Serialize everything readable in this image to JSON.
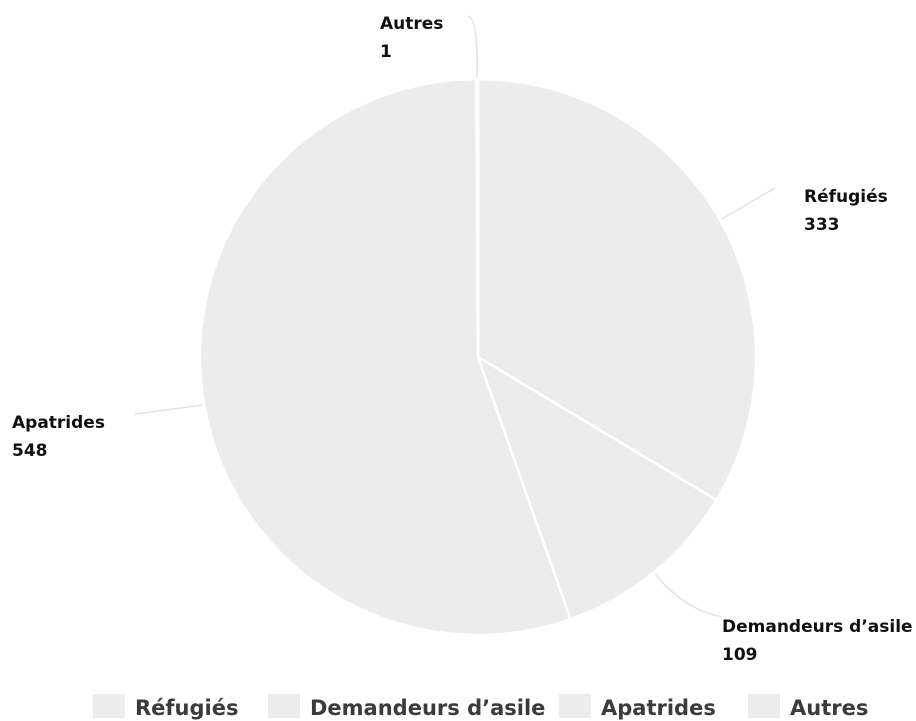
{
  "chart_data": {
    "type": "pie",
    "categories": [
      "Réfugiés",
      "Demandeurs d’asile",
      "Apatrides",
      "Autres"
    ],
    "values": [
      333,
      109,
      548,
      1
    ],
    "value_labels": [
      "333",
      "109",
      "548",
      "1"
    ],
    "start_angle_deg": 0,
    "direction": "clockwise",
    "legend_position": "bottom",
    "colors": {
      "slice_fill": "#ececec",
      "slice_border": "#ffffff",
      "leader_line": "#e3e3e3",
      "label_text": "#111111",
      "legend_text": "#3b3b3b",
      "legend_swatch": "#ececec"
    }
  }
}
